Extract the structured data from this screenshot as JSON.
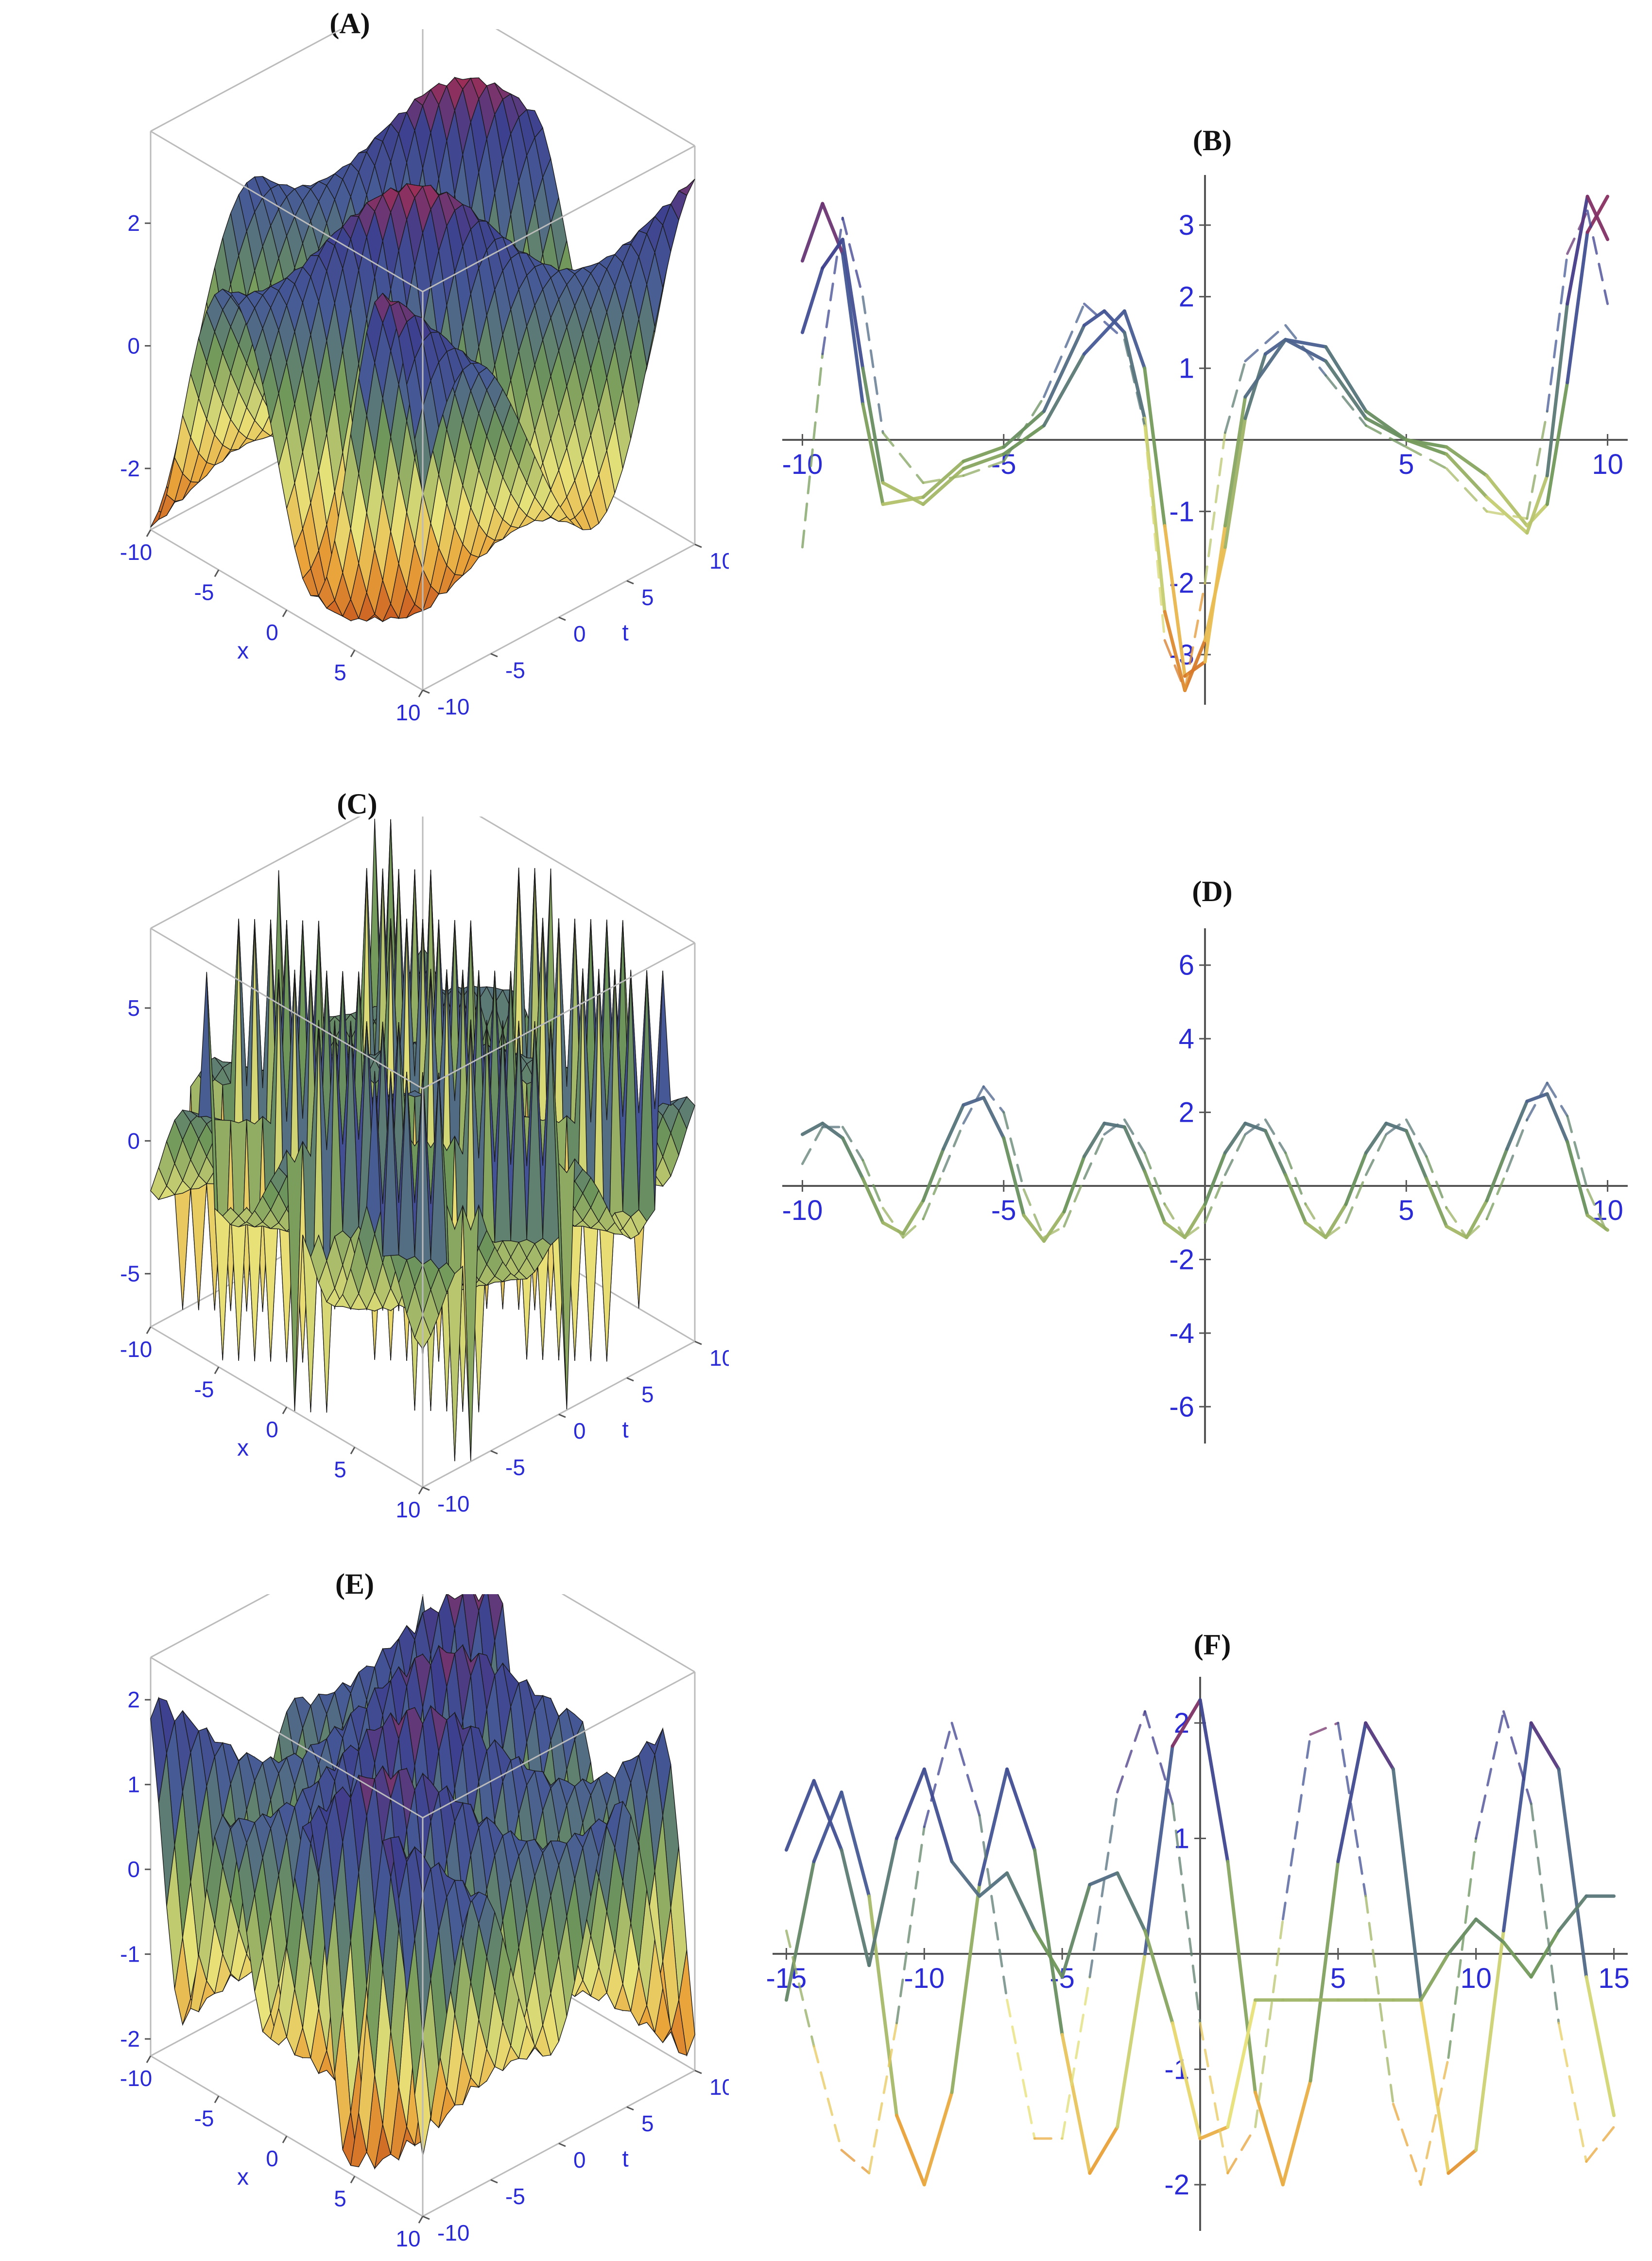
{
  "figure": {
    "panels": [
      {
        "id": "A",
        "label": "(A)"
      },
      {
        "id": "B",
        "label": "(B)"
      },
      {
        "id": "C",
        "label": "(C)"
      },
      {
        "id": "D",
        "label": "(D)"
      },
      {
        "id": "E",
        "label": "(E)"
      },
      {
        "id": "F",
        "label": "(F)"
      }
    ]
  },
  "colors": {
    "tick_blue": "#2b2bd6",
    "gradient": [
      "#b22222",
      "#d8283c",
      "#3d3f8e",
      "#4f8a4f",
      "#6a9a5a",
      "#e8e37a",
      "#e9a43a",
      "#c8571f"
    ]
  },
  "chart_data": [
    {
      "panel": "A",
      "type": "surface3d",
      "title": "(A)",
      "xlabel": "x",
      "ylabel": "t",
      "zlabel": "",
      "xlim": [
        -10,
        10
      ],
      "ylim": [
        -10,
        10
      ],
      "zlim": [
        -3,
        3.5
      ],
      "x_ticks": [
        -10,
        -5,
        0,
        5,
        10
      ],
      "y_ticks": [
        -10,
        -5,
        0,
        5,
        10
      ],
      "z_ticks": [
        -2,
        0,
        2
      ],
      "x_ticklabels": [
        "-10",
        "-5",
        "0",
        "5",
        "10"
      ],
      "y_ticklabels": [
        "-10",
        "-5",
        "0",
        "5",
        "10"
      ],
      "z_ticklabels": [
        "-2",
        "0",
        "2"
      ],
      "surface": {
        "amplitude": 3.2,
        "k": 0.55,
        "w": 0.7,
        "spike": false
      }
    },
    {
      "panel": "B",
      "type": "line",
      "title": "(B)",
      "xlim": [
        -10.5,
        10.5
      ],
      "ylim": [
        -3.7,
        3.7
      ],
      "x_ticks": [
        -10,
        -5,
        5,
        10
      ],
      "y_ticks": [
        -3,
        -2,
        -1,
        1,
        2,
        3
      ],
      "x_ticklabels": [
        "-10",
        "-5",
        "5",
        "10"
      ],
      "y_ticklabels": [
        "-3",
        "-2",
        "-1",
        "1",
        "2",
        "3"
      ],
      "series": [
        {
          "style": "solid",
          "x": [
            -10,
            -9.5,
            -9,
            -8.5,
            -8,
            -7,
            -6,
            -5,
            -4,
            -3,
            -2.5,
            -2,
            -1.5,
            -1,
            -0.5,
            0,
            0.5,
            1,
            1.5,
            2,
            3,
            4,
            5,
            6,
            7,
            8,
            8.5,
            9,
            9.5,
            10
          ],
          "y": [
            2.5,
            3.3,
            2.6,
            0.5,
            -0.9,
            -0.8,
            -0.3,
            -0.1,
            0.4,
            1.6,
            1.8,
            1.5,
            0.3,
            -2.4,
            -3.5,
            -2.8,
            -1.5,
            0.3,
            1.2,
            1.4,
            1.3,
            0.4,
            0,
            -0.1,
            -0.5,
            -1.2,
            -0.9,
            0.8,
            2.9,
            3.4
          ]
        },
        {
          "style": "solid",
          "x": [
            -10,
            -9.5,
            -9,
            -8.5,
            -8,
            -7,
            -6,
            -5,
            -4,
            -3,
            -2,
            -1.5,
            -1,
            -0.5,
            0,
            0.5,
            1,
            2,
            3,
            4,
            5,
            6,
            7,
            8,
            8.5,
            9,
            9.5,
            10
          ],
          "y": [
            1.5,
            2.4,
            2.8,
            1.0,
            -0.6,
            -0.9,
            -0.4,
            -0.2,
            0.2,
            1.2,
            1.8,
            1.0,
            -1.2,
            -3.3,
            -3.1,
            -1.2,
            0.6,
            1.4,
            1.1,
            0.3,
            0,
            -0.2,
            -0.8,
            -1.3,
            -0.5,
            1.9,
            3.4,
            2.8
          ]
        },
        {
          "style": "dashed",
          "x": [
            -10,
            -9.5,
            -9,
            -8.5,
            -8,
            -7,
            -6,
            -5,
            -4,
            -3,
            -2,
            -1.5,
            -1,
            -0.5,
            0,
            0.5,
            1,
            2,
            3,
            4,
            5,
            6,
            7,
            8,
            8.5,
            9,
            9.5,
            10
          ],
          "y": [
            -1.5,
            1.2,
            3.1,
            2.0,
            0.1,
            -0.6,
            -0.5,
            -0.3,
            0.6,
            1.9,
            1.4,
            0.2,
            -2.8,
            -3.5,
            -2.0,
            0.1,
            1.1,
            1.6,
            0.9,
            0.2,
            -0.1,
            -0.4,
            -1.0,
            -1.1,
            0.4,
            2.6,
            3.2,
            1.9
          ]
        }
      ]
    },
    {
      "panel": "C",
      "type": "surface3d",
      "title": "(C)",
      "xlabel": "x",
      "ylabel": "t",
      "zlabel": "",
      "xlim": [
        -10,
        10
      ],
      "ylim": [
        -10,
        10
      ],
      "zlim": [
        -7,
        8
      ],
      "x_ticks": [
        -10,
        -5,
        0,
        5,
        10
      ],
      "y_ticks": [
        -10,
        -5,
        0,
        5,
        10
      ],
      "z_ticks": [
        -5,
        0,
        5
      ],
      "x_ticklabels": [
        "-10",
        "-5",
        "0",
        "5",
        "10"
      ],
      "y_ticklabels": [
        "-10",
        "-5",
        "0",
        "5",
        "10"
      ],
      "z_ticklabels": [
        "-5",
        "0",
        "5"
      ],
      "surface": {
        "amplitude": 2.4,
        "k": 0.9,
        "w": 0.9,
        "spike": true
      }
    },
    {
      "panel": "D",
      "type": "line",
      "title": "(D)",
      "xlim": [
        -10.5,
        10.5
      ],
      "ylim": [
        -7,
        7
      ],
      "x_ticks": [
        -10,
        -5,
        5,
        10
      ],
      "y_ticks": [
        -6,
        -4,
        -2,
        2,
        4,
        6
      ],
      "x_ticklabels": [
        "-10",
        "-5",
        "5",
        "10"
      ],
      "y_ticklabels": [
        "-6",
        "-4",
        "-2",
        "2",
        "4",
        "6"
      ],
      "series": [
        {
          "style": "solid",
          "x": [
            -10,
            -9.5,
            -9,
            -8.5,
            -8,
            -7.5,
            -7,
            -6.5,
            -6,
            -5.5,
            -5,
            -4.5,
            -4,
            -3.5,
            -3,
            -2.5,
            -2,
            -1.5,
            -1,
            -0.5,
            0,
            0.5,
            1,
            1.5,
            2,
            2.5,
            3,
            3.5,
            4,
            4.5,
            5,
            5.5,
            6,
            6.5,
            7,
            7.5,
            8,
            8.5,
            9,
            9.5,
            10
          ],
          "y": [
            1.4,
            1.7,
            1.3,
            0.2,
            -1.0,
            -1.3,
            -0.4,
            1.0,
            2.2,
            2.4,
            1.3,
            -0.8,
            -1.5,
            -0.7,
            0.8,
            1.7,
            1.6,
            0.4,
            -1.0,
            -1.4,
            -0.5,
            0.9,
            1.7,
            1.5,
            0.3,
            -1.0,
            -1.4,
            -0.5,
            0.9,
            1.7,
            1.5,
            0.2,
            -1.1,
            -1.4,
            -0.4,
            1.0,
            2.3,
            2.5,
            1.2,
            -0.8,
            -1.2
          ]
        },
        {
          "style": "dashed",
          "x": [
            -10,
            -9.5,
            -9,
            -8.5,
            -8,
            -7.5,
            -7,
            -6.5,
            -6,
            -5.5,
            -5,
            -4.5,
            -4,
            -3.5,
            -3,
            -2.5,
            -2,
            -1.5,
            -1,
            -0.5,
            0,
            0.5,
            1,
            1.5,
            2,
            2.5,
            3,
            3.5,
            4,
            4.5,
            5,
            5.5,
            6,
            6.5,
            7,
            7.5,
            8,
            8.5,
            9,
            9.5,
            10
          ],
          "y": [
            0.6,
            1.6,
            1.6,
            0.7,
            -0.6,
            -1.4,
            -0.9,
            0.4,
            1.7,
            2.7,
            2.0,
            -0.1,
            -1.4,
            -1.1,
            0.2,
            1.4,
            1.8,
            0.9,
            -0.5,
            -1.4,
            -1.0,
            0.3,
            1.4,
            1.8,
            0.9,
            -0.5,
            -1.4,
            -1.0,
            0.3,
            1.4,
            1.8,
            0.8,
            -0.6,
            -1.4,
            -0.9,
            0.4,
            1.8,
            2.8,
            1.9,
            -0.1,
            -1.3
          ]
        }
      ]
    },
    {
      "panel": "E",
      "type": "surface3d",
      "title": "(E)",
      "xlabel": "x",
      "ylabel": "t",
      "zlabel": "",
      "xlim": [
        -10,
        10
      ],
      "ylim": [
        -10,
        10
      ],
      "zlim": [
        -2.2,
        2.5
      ],
      "x_ticks": [
        -10,
        -5,
        0,
        5,
        10
      ],
      "y_ticks": [
        -10,
        -5,
        0,
        5,
        10
      ],
      "z_ticks": [
        -2,
        -1,
        0,
        1,
        2
      ],
      "x_ticklabels": [
        "-10",
        "-5",
        "0",
        "5",
        "10"
      ],
      "y_ticklabels": [
        "-10",
        "-5",
        "0",
        "5",
        "10"
      ],
      "z_ticklabels": [
        "-2",
        "-1",
        "0",
        "1",
        "2"
      ],
      "surface": {
        "amplitude": 2.2,
        "k": 1.05,
        "w": 0.6,
        "spike": false
      }
    },
    {
      "panel": "F",
      "type": "line",
      "title": "(F)",
      "xlim": [
        -15.5,
        15.5
      ],
      "ylim": [
        -2.4,
        2.4
      ],
      "x_ticks": [
        -15,
        -10,
        -5,
        5,
        10,
        15
      ],
      "y_ticks": [
        -2,
        -1,
        1,
        2
      ],
      "x_ticklabels": [
        "-15",
        "-10",
        "-5",
        "5",
        "10",
        "15"
      ],
      "y_ticklabels": [
        "-2",
        "-1",
        "1",
        "2"
      ],
      "series": [
        {
          "style": "solid",
          "x": [
            -15,
            -14,
            -13,
            -12,
            -11,
            -10,
            -9,
            -8,
            -7,
            -6,
            -5,
            -4,
            -3,
            -2,
            -1,
            0,
            1,
            2,
            3,
            4,
            5,
            6,
            7,
            8,
            9,
            10,
            11,
            12,
            13,
            14,
            15
          ],
          "y": [
            -0.4,
            0.8,
            1.4,
            0.5,
            -1.4,
            -2.0,
            -1.2,
            0.6,
            1.6,
            0.9,
            -0.7,
            -1.9,
            -1.5,
            0.0,
            1.8,
            2.2,
            0.8,
            -1.2,
            -2.0,
            -1.1,
            0.8,
            2.0,
            1.6,
            -0.4,
            -1.9,
            -1.7,
            0.2,
            2.0,
            1.6,
            -0.2,
            -1.4
          ]
        },
        {
          "style": "solid",
          "x": [
            -15,
            -14,
            -13,
            -12,
            -11,
            -10,
            -9,
            -8,
            -7,
            -6,
            -5,
            -4,
            -3,
            -2,
            -1,
            0,
            1,
            2,
            3,
            4,
            5,
            6,
            7,
            8,
            9,
            10,
            11,
            12,
            13,
            14,
            15
          ],
          "y": [
            0.9,
            1.5,
            0.9,
            -0.1,
            1.0,
            1.6,
            0.8,
            0.5,
            0.7,
            0.2,
            -0.2,
            0.6,
            0.7,
            0.2,
            -0.6,
            -1.6,
            -1.5,
            -0.4,
            -0.4,
            -0.4,
            -0.4,
            -0.4,
            -0.4,
            -0.4,
            0.0,
            0.3,
            0.1,
            -0.2,
            0.2,
            0.5,
            0.5
          ]
        },
        {
          "style": "dashed",
          "x": [
            -15,
            -14,
            -13,
            -12,
            -11,
            -10,
            -9,
            -8,
            -7,
            -6,
            -5,
            -4,
            -3,
            -2,
            -1,
            0,
            1,
            2,
            3,
            4,
            5,
            6,
            7,
            8,
            9,
            10,
            11,
            12,
            13,
            14,
            15
          ],
          "y": [
            0.2,
            -0.8,
            -1.7,
            -1.9,
            -0.6,
            1.1,
            2.0,
            1.2,
            -0.4,
            -1.6,
            -1.6,
            -0.2,
            1.4,
            2.1,
            1.3,
            -0.6,
            -1.9,
            -1.5,
            0.3,
            1.9,
            2.0,
            0.5,
            -1.3,
            -2.0,
            -0.9,
            1.0,
            2.1,
            1.3,
            -0.6,
            -1.8,
            -1.5
          ]
        }
      ]
    }
  ]
}
